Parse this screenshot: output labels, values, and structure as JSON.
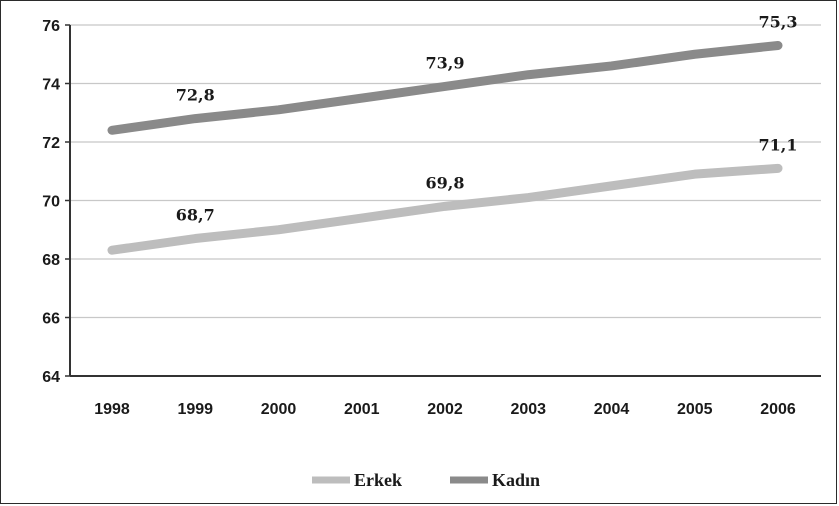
{
  "chart_data": {
    "type": "line",
    "title": "",
    "xlabel": "",
    "ylabel": "",
    "x": [
      "1998",
      "1999",
      "2000",
      "2001",
      "2002",
      "2003",
      "2004",
      "2005",
      "2006"
    ],
    "ylim": [
      64,
      76
    ],
    "yticks": [
      "64",
      "66",
      "68",
      "70",
      "72",
      "74",
      "76"
    ],
    "grid": true,
    "legend_position": "bottom",
    "series": [
      {
        "name": "Erkek",
        "color": "#bdbdbd",
        "values": [
          68.3,
          68.7,
          69.0,
          69.4,
          69.8,
          70.1,
          70.5,
          70.9,
          71.1
        ],
        "labels": [
          {
            "index": 1,
            "text": "68,7"
          },
          {
            "index": 4,
            "text": "69,8"
          },
          {
            "index": 8,
            "text": "71,1"
          }
        ]
      },
      {
        "name": "Kadın",
        "color": "#8a8a8a",
        "values": [
          72.4,
          72.8,
          73.1,
          73.5,
          73.9,
          74.3,
          74.6,
          75.0,
          75.3
        ],
        "labels": [
          {
            "index": 1,
            "text": "72,8"
          },
          {
            "index": 4,
            "text": "73,9"
          },
          {
            "index": 8,
            "text": "75,3"
          }
        ]
      }
    ]
  }
}
